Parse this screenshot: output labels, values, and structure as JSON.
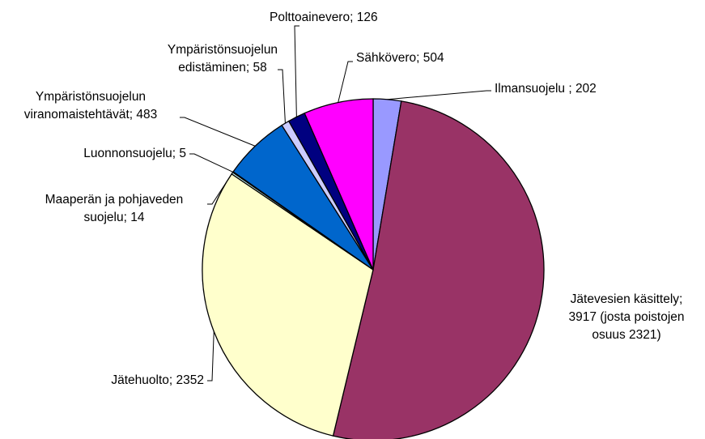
{
  "chart_data": {
    "type": "pie",
    "values": [
      202,
      3917,
      2352,
      14,
      5,
      483,
      58,
      126,
      504
    ],
    "value_labels": [
      "Ilmansuojelu  ; 202",
      "Jätevesien käsittely;\n3917 (josta poistojen\nosuus 2321)",
      "Jätehuolto; 2352",
      "Maaperän ja pohjaveden\nsuojelu; 14",
      "Luonnonsuojelu;  5",
      "Ympäristönsuojelun\nviranomaistehtävät;  483",
      "Ympäristönsuojelun\nedistäminen; 58",
      "Polttoainevero;  126",
      "Sähkövero;  504"
    ],
    "colors": [
      "#9999ff",
      "#993366",
      "#ffffcc",
      "#ccffff",
      "#660066",
      "#0066cc",
      "#ccccff",
      "#000080",
      "#ff00ff"
    ]
  }
}
